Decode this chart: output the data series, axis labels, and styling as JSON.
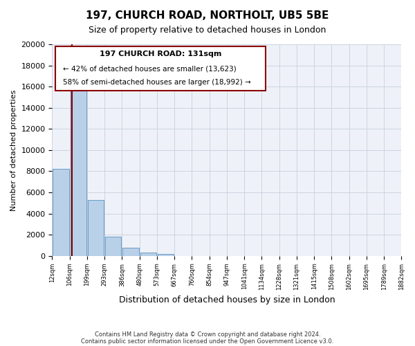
{
  "title": "197, CHURCH ROAD, NORTHOLT, UB5 5BE",
  "subtitle": "Size of property relative to detached houses in London",
  "xlabel": "Distribution of detached houses by size in London",
  "ylabel": "Number of detached properties",
  "bar_color": "#b8d0e8",
  "bar_edge_color": "#5a8fc0",
  "bin_labels": [
    "12sqm",
    "106sqm",
    "199sqm",
    "293sqm",
    "386sqm",
    "480sqm",
    "573sqm",
    "667sqm",
    "760sqm",
    "854sqm",
    "947sqm",
    "1041sqm",
    "1134sqm",
    "1228sqm",
    "1321sqm",
    "1415sqm",
    "1508sqm",
    "1602sqm",
    "1695sqm",
    "1789sqm",
    "1882sqm"
  ],
  "bar_heights": [
    8200,
    16500,
    5300,
    1800,
    800,
    300,
    200,
    0,
    0,
    0,
    0,
    0,
    0,
    0,
    0,
    0,
    0,
    0,
    0,
    0
  ],
  "ylim": [
    0,
    20000
  ],
  "yticks": [
    0,
    2000,
    4000,
    6000,
    8000,
    10000,
    12000,
    14000,
    16000,
    18000,
    20000
  ],
  "property_line_x": 0.6,
  "annotation_title": "197 CHURCH ROAD: 131sqm",
  "annotation_line1": "← 42% of detached houses are smaller (13,623)",
  "annotation_line2": "58% of semi-detached houses are larger (18,992) →",
  "footer_line1": "Contains HM Land Registry data © Crown copyright and database right 2024.",
  "footer_line2": "Contains public sector information licensed under the Open Government Licence v3.0.",
  "background_color": "#ffffff",
  "ax_bg_color": "#eef2f8",
  "grid_color": "#ccd4e0"
}
